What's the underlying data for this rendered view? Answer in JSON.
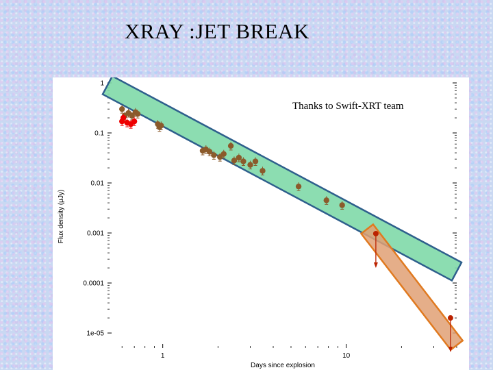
{
  "slide": {
    "title": "XRAY :JET BREAK"
  },
  "chart_data": {
    "type": "scatter",
    "title": "",
    "xlabel": "Days since explosion",
    "ylabel": "Flux density (μJy)",
    "x_scale": "log",
    "y_scale": "log",
    "xlim": [
      0.5,
      40
    ],
    "ylim": [
      5e-06,
      1
    ],
    "x_ticks": [
      {
        "value": 1,
        "label": "1"
      },
      {
        "value": 10,
        "label": "10"
      }
    ],
    "y_ticks": [
      {
        "value": 1,
        "label": "1"
      },
      {
        "value": 0.1,
        "label": "0.1"
      },
      {
        "value": 0.01,
        "label": "0.01"
      },
      {
        "value": 0.001,
        "label": "0.001"
      },
      {
        "value": 0.0001,
        "label": "0.0001"
      },
      {
        "value": 1e-05,
        "label": "1e-05"
      }
    ],
    "annotation": "Thanks to Swift-XRT team",
    "series": [
      {
        "color": "#8b5a2b",
        "marker": "circle",
        "points": [
          [
            0.6,
            0.3
          ],
          [
            0.62,
            0.22
          ],
          [
            0.65,
            0.25
          ],
          [
            0.68,
            0.22
          ],
          [
            0.71,
            0.26
          ],
          [
            0.73,
            0.24
          ],
          [
            0.94,
            0.15
          ],
          [
            0.96,
            0.13
          ],
          [
            0.98,
            0.14
          ],
          [
            1.65,
            0.044
          ],
          [
            1.72,
            0.047
          ],
          [
            1.8,
            0.042
          ],
          [
            1.9,
            0.036
          ],
          [
            2.05,
            0.033
          ],
          [
            2.15,
            0.038
          ],
          [
            2.35,
            0.055
          ],
          [
            2.45,
            0.028
          ],
          [
            2.6,
            0.032
          ],
          [
            2.75,
            0.027
          ],
          [
            3.0,
            0.023
          ],
          [
            3.2,
            0.027
          ],
          [
            3.5,
            0.0175
          ],
          [
            5.5,
            0.0085
          ],
          [
            7.8,
            0.0045
          ],
          [
            9.5,
            0.0036
          ]
        ]
      },
      {
        "color": "#ee0000",
        "marker": "circle",
        "points": [
          [
            0.6,
            0.17
          ],
          [
            0.61,
            0.2
          ],
          [
            0.64,
            0.16
          ],
          [
            0.67,
            0.15
          ],
          [
            0.7,
            0.17
          ]
        ]
      },
      {
        "color": "#bb2200",
        "marker": "circle",
        "upper_limit": true,
        "points": [
          [
            14.5,
            0.00097
          ],
          [
            37.0,
            2e-05
          ]
        ]
      }
    ],
    "highlight_bands": [
      {
        "name": "",
        "color": "#7fd9a8",
        "border": "#2e5f8c",
        "from": [
          0.5,
          0.9
        ],
        "to": [
          40,
          0.00017
        ]
      },
      {
        "name": "",
        "color": "#e0a074",
        "border": "#e07a20",
        "from": [
          13.0,
          0.0012
        ],
        "to": [
          40,
          5.7e-06
        ]
      }
    ]
  }
}
